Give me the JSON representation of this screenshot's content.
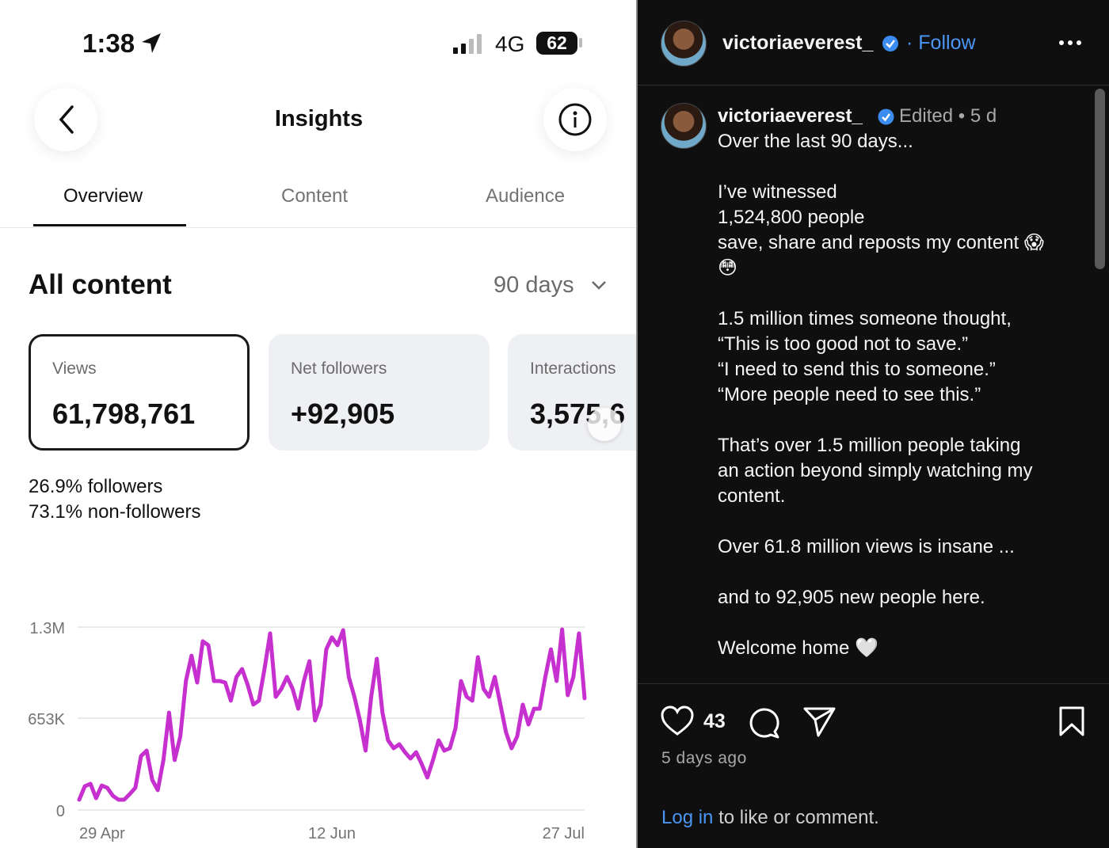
{
  "status": {
    "time": "1:38",
    "network": "4G",
    "battery": "62"
  },
  "header": {
    "title": "Insights"
  },
  "tabs": [
    "Overview",
    "Content",
    "Audience"
  ],
  "section": {
    "title": "All content",
    "period": "90 days"
  },
  "cards": [
    {
      "label": "Views",
      "value": "61,798,761"
    },
    {
      "label": "Net followers",
      "value": "+92,905"
    },
    {
      "label": "Interactions",
      "value": "3,575,6"
    }
  ],
  "breakdown": [
    {
      "value": "26.9%",
      "label": "followers"
    },
    {
      "value": "73.1%",
      "label": "non-followers"
    }
  ],
  "chart_data": {
    "type": "line",
    "color": "#c630cf",
    "categories": [
      "29 Apr",
      null,
      null,
      null,
      null,
      null,
      null,
      null,
      null,
      null,
      null,
      null,
      null,
      null,
      null,
      null,
      null,
      null,
      null,
      null,
      null,
      null,
      null,
      null,
      null,
      null,
      null,
      null,
      null,
      null,
      null,
      null,
      null,
      null,
      null,
      null,
      null,
      null,
      null,
      null,
      null,
      null,
      null,
      null,
      null,
      "12 Jun",
      null,
      null,
      null,
      null,
      null,
      null,
      null,
      null,
      null,
      null,
      null,
      null,
      null,
      null,
      null,
      null,
      null,
      null,
      null,
      null,
      null,
      null,
      null,
      null,
      null,
      null,
      null,
      null,
      null,
      null,
      null,
      null,
      null,
      null,
      null,
      null,
      null,
      null,
      null,
      null,
      null,
      null,
      null,
      null,
      "27 Jul"
    ],
    "values": [
      73000,
      169000,
      186000,
      84000,
      174000,
      158000,
      101000,
      73000,
      73000,
      113000,
      158000,
      383000,
      422000,
      214000,
      141000,
      355000,
      692000,
      355000,
      523000,
      917000,
      1097000,
      906000,
      1199000,
      1171000,
      917000,
      917000,
      906000,
      777000,
      946000,
      1002000,
      889000,
      749000,
      777000,
      1002000,
      1255000,
      805000,
      861000,
      946000,
      861000,
      720000,
      917000,
      1058000,
      636000,
      749000,
      1142000,
      1227000,
      1171000,
      1278000,
      946000,
      805000,
      636000,
      422000,
      805000,
      1075000,
      692000,
      495000,
      439000,
      467000,
      411000,
      366000,
      411000,
      326000,
      231000,
      355000,
      495000,
      422000,
      439000,
      580000,
      917000,
      805000,
      777000,
      1086000,
      861000,
      805000,
      946000,
      749000,
      552000,
      439000,
      523000,
      749000,
      608000,
      720000,
      720000,
      946000,
      1142000,
      917000,
      1283000,
      816000,
      946000,
      1255000,
      794000
    ],
    "ylim": [
      0,
      1300000
    ],
    "yticks": [
      0,
      {
        "value": 653000,
        "label": "653K"
      },
      {
        "value": 1300000,
        "label": "1.3M"
      }
    ],
    "grid": true
  },
  "post": {
    "username": "victoriaeverest_",
    "follow": "Follow",
    "author": "victoriaeverest_",
    "edited": "Edited",
    "age": "5 d",
    "caption": [
      [
        "Over the last 90 days..."
      ],
      [
        "I’ve witnessed",
        "1,524,800 people",
        "save, share and reposts my content 😱",
        "😳"
      ],
      [
        "1.5 million times someone thought,",
        "“This is too good not to save.”",
        "“I need to send this to someone.”",
        "“More people need to see this.”"
      ],
      [
        "That’s over 1.5 million people taking",
        "an action beyond simply watching my",
        "content."
      ],
      [
        "Over 61.8 million views is insane ..."
      ],
      [
        "and to 92,905 new people here."
      ],
      [
        "Welcome home 🤍"
      ]
    ],
    "likes": "43",
    "posted": "5 days ago",
    "login": "Log in",
    "login_rest": "to like or comment."
  }
}
